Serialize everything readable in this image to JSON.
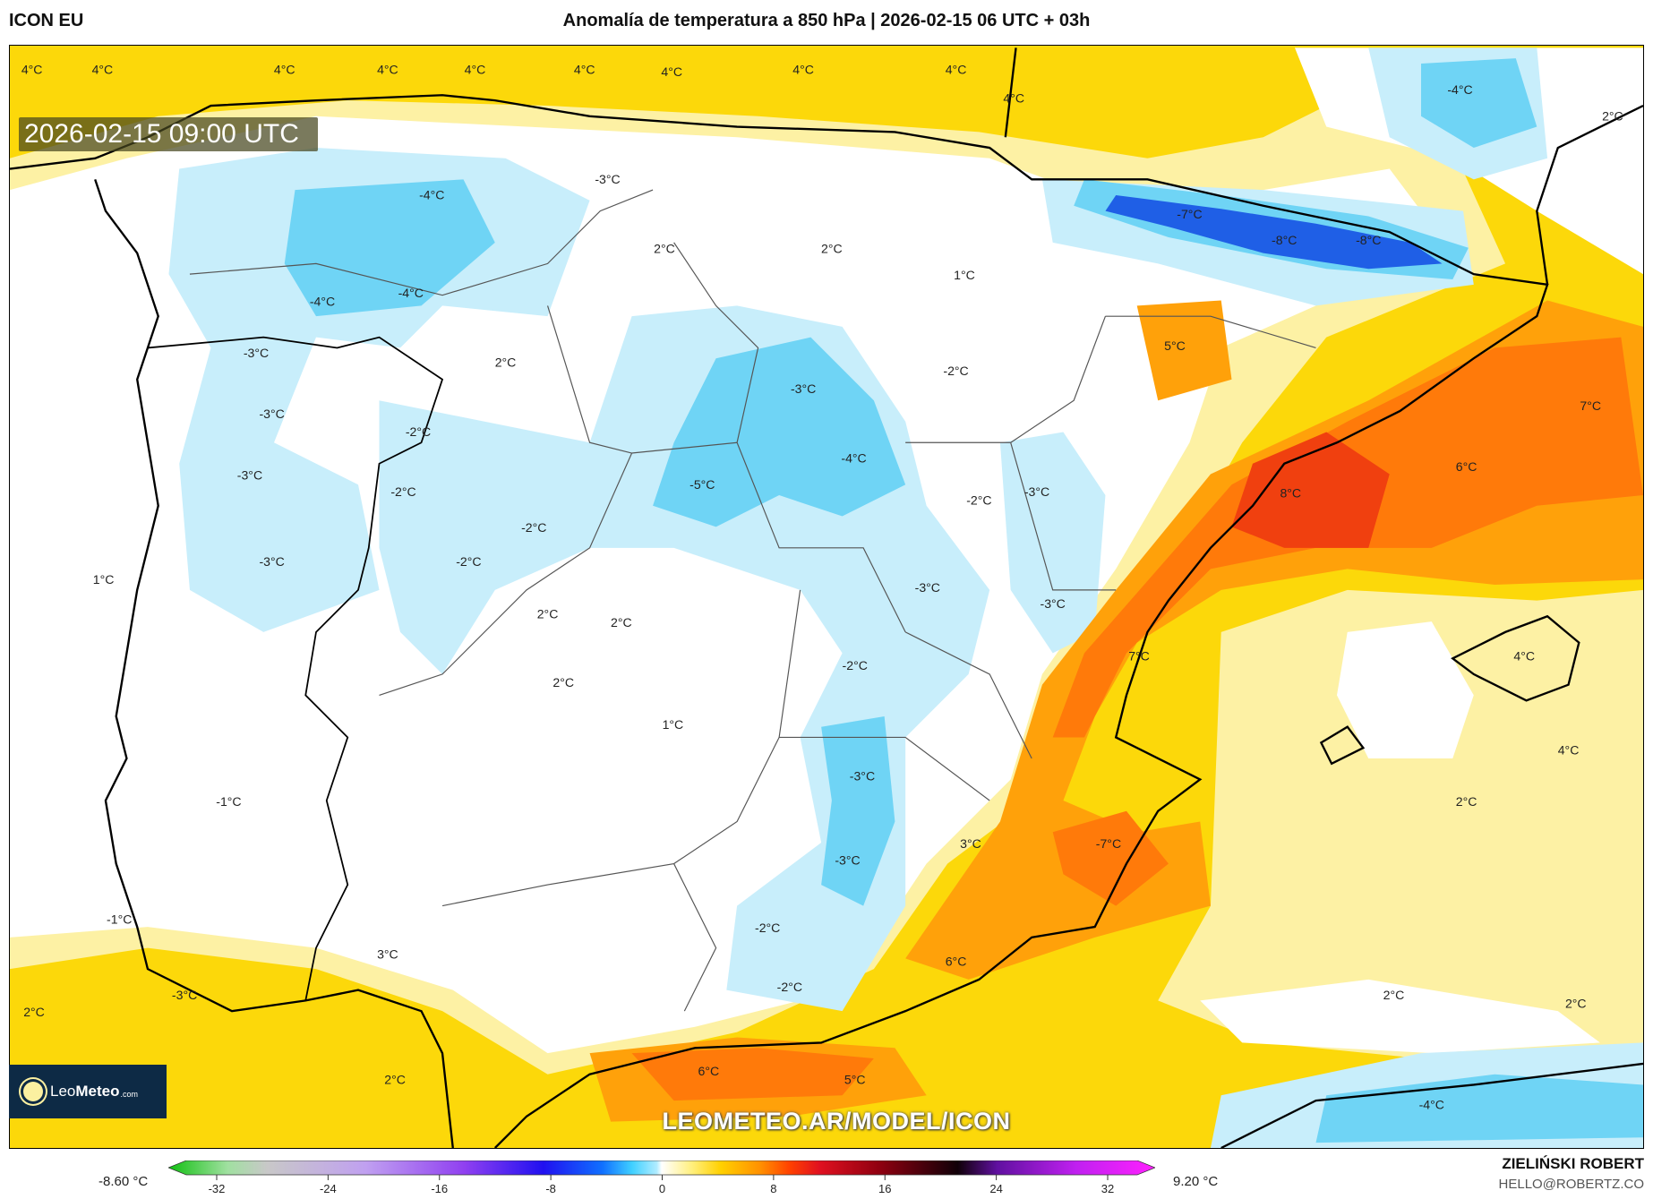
{
  "header": {
    "model": "ICON EU",
    "title": "Anomalía de temperatura a 850 hPa | 2026-02-15 06 UTC + 03h"
  },
  "map": {
    "valid_time": "2026-02-15 09:00 UTC",
    "watermark": "LEOMETEO.AR/MODEL/ICON",
    "logo": {
      "part1": "Leo",
      "part2": "Meteo",
      "part3": ".com"
    },
    "labels": [
      "4°C",
      "4°C",
      "4°C",
      "4°C",
      "4°C",
      "4°C",
      "4°C",
      "4°C",
      "4°C",
      "4°C",
      "-4°C",
      "2°C",
      "-3°C",
      "-4°C",
      "-7°C",
      "-8°C",
      "-8°C",
      "2°C",
      "2°C",
      "1°C",
      "-4°C",
      "-4°C",
      "5°C",
      "-3°C",
      "2°C",
      "-2°C",
      "-3°C",
      "7°C",
      "-3°C",
      "-2°C",
      "-4°C",
      "6°C",
      "-3°C",
      "-5°C",
      "-2°C",
      "-2°C",
      "-3°C",
      "8°C",
      "-2°C",
      "-2°C",
      "-3°C",
      "1°C",
      "-3°C",
      "-3°C",
      "2°C",
      "2°C",
      "4°C",
      "7°C",
      "-2°C",
      "2°C",
      "1°C",
      "4°C",
      "-3°C",
      "-1°C",
      "2°C",
      "3°C",
      "-7°C",
      "-3°C",
      "-1°C",
      "-2°C",
      "3°C",
      "6°C",
      "-3°C",
      "-2°C",
      "2°C",
      "2°C",
      "2°C",
      "2°C",
      "6°C",
      "5°C",
      "-4°C"
    ],
    "colors": {
      "warm_strong": "#fcd80a",
      "warm_light": "#fdf1a4",
      "neutral": "#ffffff",
      "cool_light": "#c8eefb",
      "cool": "#6fd4f5",
      "cold": "#1f5fe6",
      "orange": "#ffa10a",
      "dark_orange": "#ff7a0a",
      "red": "#f0400f"
    }
  },
  "colorbar": {
    "min_label": "-8.60 °C",
    "max_label": "9.20 °C",
    "ticks": [
      "-32",
      "-24",
      "-16",
      "-8",
      "0",
      "8",
      "16",
      "24",
      "32"
    ],
    "range": [
      -32,
      32
    ]
  },
  "credits": {
    "author": "ZIELIŃSKI ROBERT",
    "email": "HELLO@ROBERTZ.CO"
  }
}
